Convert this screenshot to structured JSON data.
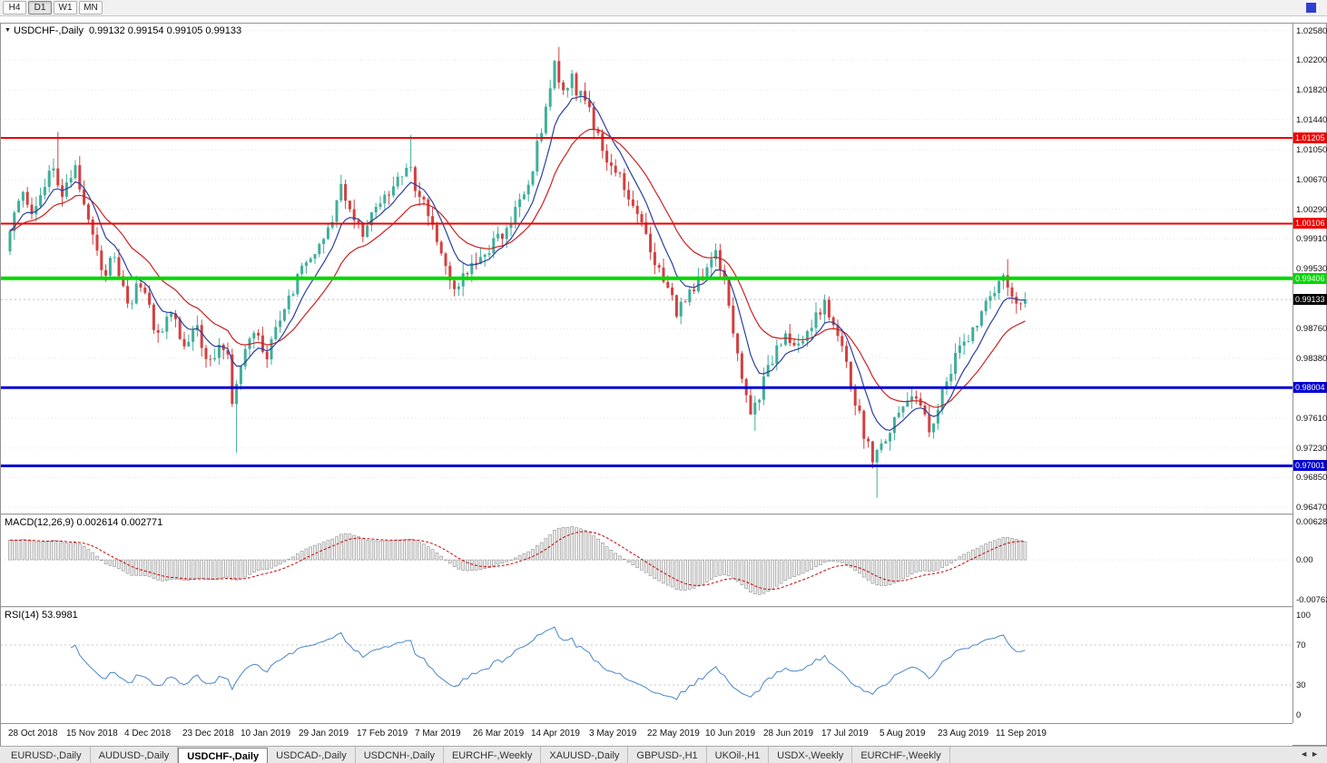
{
  "toolbar": {
    "buttons": [
      {
        "label": "H4"
      },
      {
        "label": "D1"
      },
      {
        "label": "W1"
      },
      {
        "label": "MN"
      }
    ],
    "active": "D1"
  },
  "chart": {
    "header_title": "USDCHF-,Daily",
    "ohlc_text": "0.99132 0.99154 0.99105 0.99133"
  },
  "price_axis": {
    "ticks": [
      {
        "label": "1.02580",
        "value": 1.0258
      },
      {
        "label": "1.02200",
        "value": 1.022
      },
      {
        "label": "1.01820",
        "value": 1.0182
      },
      {
        "label": "1.01440",
        "value": 1.0144
      },
      {
        "label": "1.01050",
        "value": 1.0105
      },
      {
        "label": "1.00670",
        "value": 1.0067
      },
      {
        "label": "1.00290",
        "value": 1.0029
      },
      {
        "label": "0.99910",
        "value": 0.9991
      },
      {
        "label": "0.99530",
        "value": 0.9953
      },
      {
        "label": "0.98760",
        "value": 0.9876
      },
      {
        "label": "0.98380",
        "value": 0.9838
      },
      {
        "label": "0.97610",
        "value": 0.9761
      },
      {
        "label": "0.97230",
        "value": 0.9723
      },
      {
        "label": "0.96850",
        "value": 0.9685
      },
      {
        "label": "0.96470",
        "value": 0.9647
      }
    ],
    "levels": [
      {
        "label": "1.01205",
        "value": 1.01205,
        "color": "#ee0000",
        "thickness": 2
      },
      {
        "label": "1.00106",
        "value": 1.00106,
        "color": "#ee0000",
        "thickness": 2
      },
      {
        "label": "0.99406",
        "value": 0.99406,
        "color": "#00d800",
        "thickness": 4
      },
      {
        "label": "0.98004",
        "value": 0.98004,
        "color": "#0000d0",
        "thickness": 3
      },
      {
        "label": "0.97001",
        "value": 0.97001,
        "color": "#0000d0",
        "thickness": 3
      }
    ],
    "current": {
      "label": "0.99133",
      "value": 0.99133,
      "bg": "#000000"
    }
  },
  "macd": {
    "header": "MACD(12,26,9) 0.002614 0.002771",
    "axis_top": "0.006286",
    "axis_zero": "0.00",
    "axis_bottom": "-0.00762"
  },
  "rsi": {
    "header": "RSI(14) 53.9981",
    "axis": [
      "100",
      "70",
      "30",
      "0"
    ]
  },
  "dates": [
    "28 Oct 2018",
    "15 Nov 2018",
    "4 Dec 2018",
    "23 Dec 2018",
    "10 Jan 2019",
    "29 Jan 2019",
    "17 Feb 2019",
    "7 Mar 2019",
    "26 Mar 2019",
    "14 Apr 2019",
    "3 May 2019",
    "22 May 2019",
    "10 Jun 2019",
    "28 Jun 2019",
    "17 Jul 2019",
    "5 Aug 2019",
    "23 Aug 2019",
    "11 Sep 2019"
  ],
  "tabs": {
    "items": [
      {
        "label": "EURUSD-,Daily"
      },
      {
        "label": "AUDUSD-,Daily"
      },
      {
        "label": "USDCHF-,Daily"
      },
      {
        "label": "USDCAD-,Daily"
      },
      {
        "label": "USDCNH-,Daily"
      },
      {
        "label": "EURCHF-,Weekly"
      },
      {
        "label": "XAUUSD-,Daily"
      },
      {
        "label": "GBPUSD-,H1"
      },
      {
        "label": "UKOil-,H1"
      },
      {
        "label": "USDX-,Weekly"
      },
      {
        "label": "EURCHF-,Weekly"
      }
    ],
    "active_index": 2,
    "scroll_left": "◄",
    "scroll_right": "►"
  },
  "chart_data": {
    "type": "candlestick",
    "symbol": "USDCHF",
    "timeframe": "Daily",
    "candle_count": 234,
    "last_close": 0.99133,
    "y_range": {
      "max": 1.0267,
      "min": 0.9639
    },
    "price_path": [
      [
        0,
        0.9975
      ],
      [
        2,
        1.002
      ],
      [
        4,
        1.0045
      ],
      [
        6,
        1.0015
      ],
      [
        9,
        1.006
      ],
      [
        11,
        1.0085
      ],
      [
        13,
        1.005
      ],
      [
        16,
        1.008
      ],
      [
        19,
        1.002
      ],
      [
        22,
        0.9945
      ],
      [
        25,
        0.9965
      ],
      [
        28,
        0.9905
      ],
      [
        31,
        0.9935
      ],
      [
        35,
        0.9865
      ],
      [
        38,
        0.99
      ],
      [
        41,
        0.985
      ],
      [
        44,
        0.9875
      ],
      [
        47,
        0.983
      ],
      [
        50,
        0.9855
      ],
      [
        51,
        0.984
      ],
      [
        52,
        0.9775
      ],
      [
        54,
        0.983
      ],
      [
        57,
        0.9875
      ],
      [
        60,
        0.9845
      ],
      [
        63,
        0.9895
      ],
      [
        66,
        0.9925
      ],
      [
        69,
        0.9965
      ],
      [
        72,
        0.9985
      ],
      [
        75,
        1.002
      ],
      [
        77,
        1.0055
      ],
      [
        79,
        1.0035
      ],
      [
        82,
        1.0
      ],
      [
        85,
        1.003
      ],
      [
        88,
        1.0055
      ],
      [
        91,
        1.0075
      ],
      [
        92,
        1.009
      ],
      [
        94,
        1.006
      ],
      [
        97,
        1.002
      ],
      [
        100,
        0.997
      ],
      [
        103,
        0.9932
      ],
      [
        106,
        0.995
      ],
      [
        109,
        0.9968
      ],
      [
        112,
        0.9988
      ],
      [
        115,
        1.0005
      ],
      [
        118,
        1.0038
      ],
      [
        121,
        1.0085
      ],
      [
        124,
        1.0155
      ],
      [
        126,
        1.0212
      ],
      [
        128,
        1.018
      ],
      [
        130,
        1.0195
      ],
      [
        132,
        1.0172
      ],
      [
        134,
        1.016
      ],
      [
        136,
        1.012
      ],
      [
        139,
        1.0085
      ],
      [
        142,
        1.0058
      ],
      [
        145,
        1.0022
      ],
      [
        148,
        0.9975
      ],
      [
        151,
        0.9938
      ],
      [
        154,
        0.99
      ],
      [
        157,
        0.9918
      ],
      [
        160,
        0.9942
      ],
      [
        163,
        0.9972
      ],
      [
        165,
        0.9935
      ],
      [
        167,
        0.987
      ],
      [
        169,
        0.9805
      ],
      [
        171,
        0.9768
      ],
      [
        173,
        0.979
      ],
      [
        176,
        0.9838
      ],
      [
        179,
        0.9866
      ],
      [
        182,
        0.9852
      ],
      [
        185,
        0.9882
      ],
      [
        188,
        0.9906
      ],
      [
        191,
        0.9868
      ],
      [
        193,
        0.983
      ],
      [
        196,
        0.9762
      ],
      [
        199,
        0.9706
      ],
      [
        202,
        0.9732
      ],
      [
        205,
        0.9768
      ],
      [
        208,
        0.9798
      ],
      [
        210,
        0.9778
      ],
      [
        212,
        0.974
      ],
      [
        215,
        0.9792
      ],
      [
        218,
        0.9838
      ],
      [
        221,
        0.9868
      ],
      [
        224,
        0.9892
      ],
      [
        227,
        0.9928
      ],
      [
        229,
        0.9948
      ],
      [
        231,
        0.9918
      ],
      [
        233,
        0.99133
      ]
    ],
    "wick_overrides": {
      "11": {
        "high": 1.0128
      },
      "52": {
        "low": 0.9717
      },
      "92": {
        "high": 1.0124
      },
      "103": {
        "low": 0.9918
      },
      "126": {
        "high": 1.0237
      },
      "171": {
        "low": 0.9745
      },
      "199": {
        "low": 0.9659
      },
      "229": {
        "high": 0.9965
      }
    },
    "ma_fast": {
      "period": 8,
      "color": "#2b3f9e"
    },
    "ma_slow": {
      "period": 20,
      "color": "#cc2020"
    },
    "macd": {
      "fast": 12,
      "slow": 26,
      "signal": 9
    },
    "rsi": {
      "period": 14
    },
    "colors": {
      "up": "#3fae9b",
      "down": "#d14040",
      "macd_bar_fill": "#ececec",
      "macd_bar_stroke": "#8f8f8f",
      "macd_signal": "#cc0000",
      "rsi_line": "#4a86c8"
    }
  }
}
